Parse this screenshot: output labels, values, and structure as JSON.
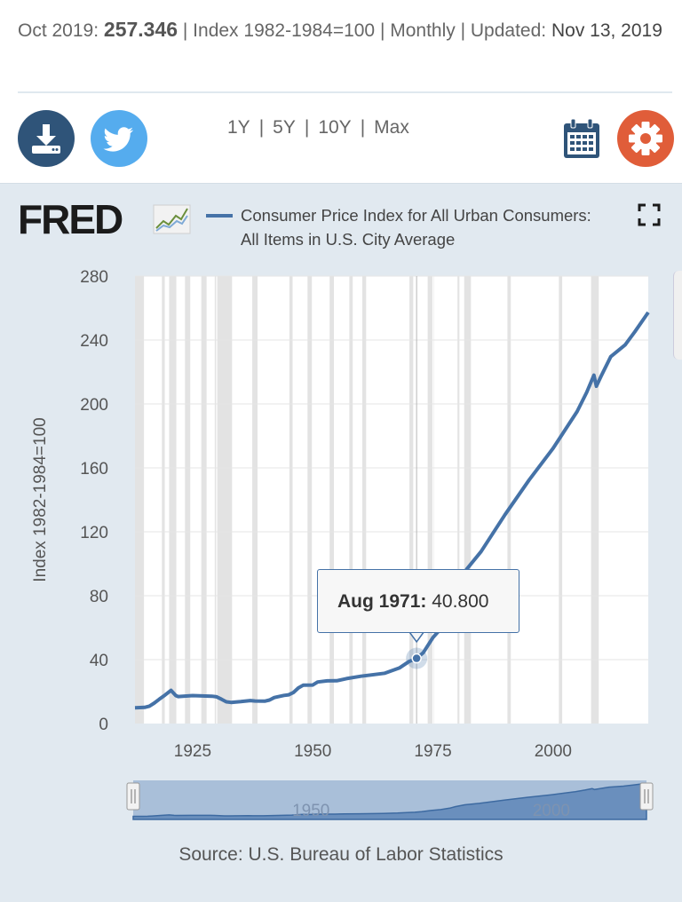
{
  "header": {
    "period": "Oct 2019:",
    "value": "257.346",
    "units": "| Index 1982-1984=100 | Monthly | Updated:",
    "updated": "Nov 13, 2019"
  },
  "toolbar": {
    "ranges": [
      "1Y",
      "5Y",
      "10Y",
      "Max"
    ],
    "download_icon": "download-icon",
    "twitter_icon": "twitter-icon",
    "calendar_icon": "calendar-icon",
    "settings_icon": "gear-icon"
  },
  "brand": {
    "logo_text": "FRED"
  },
  "legend": {
    "line1": "Consumer Price Index for All Urban Consumers:",
    "line2": "All Items in U.S. City Average"
  },
  "tooltip": {
    "date": "Aug 1971:",
    "value": "40.800"
  },
  "source": "Source: U.S. Bureau of Labor Statistics",
  "colors": {
    "series": "#4572a7",
    "panel_bg": "#e1e9f0",
    "recession": "#e3e3e3",
    "download_btn": "#2f5479",
    "twitter_btn": "#55acee",
    "settings_btn": "#e05d39"
  },
  "chart_data": {
    "type": "line",
    "title": "Consumer Price Index for All Urban Consumers: All Items in U.S. City Average",
    "xlabel": "",
    "ylabel": "Index 1982-1984=100",
    "xlim": [
      1913,
      2019.8
    ],
    "ylim": [
      0,
      280
    ],
    "y_ticks": [
      0,
      40,
      80,
      120,
      160,
      200,
      240,
      280
    ],
    "x_ticks": [
      1925,
      1950,
      1975,
      2000
    ],
    "grid": true,
    "series": [
      {
        "name": "Consumer Price Index for All Urban Consumers: All Items in U.S. City Average",
        "x": [
          1913,
          1915,
          1916,
          1917,
          1918,
          1919,
          1920.5,
          1921.5,
          1922,
          1925,
          1929,
          1930,
          1931,
          1932,
          1933,
          1935,
          1937,
          1938,
          1940,
          1941,
          1942,
          1944,
          1945,
          1946,
          1947,
          1948,
          1950,
          1951,
          1953,
          1955,
          1957,
          1960,
          1965,
          1968,
          1970,
          1971.6,
          1973,
          1975,
          1977,
          1979,
          1980,
          1982,
          1985,
          1990,
          1995,
          2000,
          2005,
          2007,
          2008.5,
          2009,
          2010,
          2012,
          2015,
          2017,
          2019.8
        ],
        "y": [
          9.9,
          10.1,
          10.9,
          12.8,
          15.1,
          17.3,
          20.8,
          17.5,
          16.9,
          17.5,
          17.1,
          16.7,
          15.2,
          13.6,
          13.2,
          13.7,
          14.4,
          14.1,
          14.0,
          14.7,
          16.3,
          17.6,
          18.0,
          19.5,
          22.3,
          24.0,
          24.1,
          26.0,
          26.7,
          26.8,
          28.1,
          29.6,
          31.5,
          34.8,
          38.8,
          40.8,
          44.4,
          53.8,
          60.6,
          72.6,
          82.4,
          96.5,
          107.6,
          130.7,
          152.4,
          172.2,
          195.3,
          207.3,
          218.0,
          211.1,
          217.5,
          229.6,
          237.0,
          245.1,
          257.3
        ]
      }
    ],
    "recessions": [
      [
        1913.0,
        1914.9
      ],
      [
        1918.6,
        1919.2
      ],
      [
        1920.0,
        1921.6
      ],
      [
        1923.4,
        1924.5
      ],
      [
        1926.8,
        1927.9
      ],
      [
        1929.6,
        1933.2
      ],
      [
        1937.4,
        1938.5
      ],
      [
        1945.1,
        1945.8
      ],
      [
        1948.9,
        1949.8
      ],
      [
        1953.5,
        1954.4
      ],
      [
        1957.6,
        1958.3
      ],
      [
        1960.3,
        1961.1
      ],
      [
        1969.9,
        1970.9
      ],
      [
        1973.9,
        1975.2
      ],
      [
        1980.0,
        1980.5
      ],
      [
        1981.5,
        1982.9
      ],
      [
        1990.5,
        1991.2
      ],
      [
        2001.2,
        2001.9
      ],
      [
        2007.9,
        2009.5
      ]
    ],
    "annotation": {
      "label": "Aug 1971: 40.800",
      "x": 1971.6,
      "y": 40.8
    },
    "navigator": {
      "labels": [
        1950,
        2000
      ]
    }
  }
}
